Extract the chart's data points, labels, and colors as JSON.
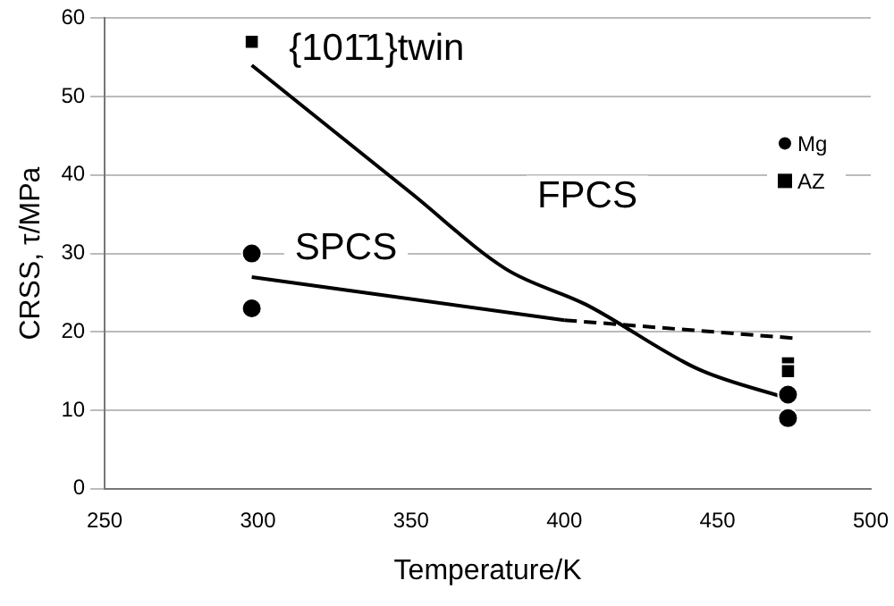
{
  "chart_data": {
    "type": "scatter",
    "xlabel": "Temperature/K",
    "ylabel": "CRSS, τ/MPa",
    "xlim": [
      250,
      500
    ],
    "xticks": [
      250,
      300,
      350,
      400,
      450,
      500
    ],
    "ylim": [
      0,
      60
    ],
    "yticks": [
      0,
      10,
      20,
      30,
      40,
      50,
      60
    ],
    "grid": "y",
    "legend": "right",
    "series": [
      {
        "name": "Mg",
        "marker": "circle",
        "color": "#000000",
        "x": [
          298,
          298,
          473,
          473
        ],
        "values": [
          30,
          23,
          12,
          9
        ]
      },
      {
        "name": "AZ",
        "marker": "square",
        "color": "#000000",
        "x": [
          298,
          473,
          473
        ],
        "values": [
          57,
          16,
          15
        ]
      },
      {
        "type": "line",
        "marker": "none",
        "line_style": "solid",
        "color": "#000000",
        "x": [
          298,
          400
        ],
        "values": [
          27,
          21.5
        ]
      },
      {
        "type": "line",
        "marker": "none",
        "line_style": "dashed",
        "color": "#000000",
        "x": [
          400,
          475
        ],
        "values": [
          21.5,
          19.2
        ]
      },
      {
        "type": "line",
        "marker": "none",
        "line_style": "solid",
        "color": "#000000",
        "x": [
          298,
          350,
          381,
          407,
          444,
          473
        ],
        "values": [
          54,
          37.7,
          28,
          23.5,
          15.2,
          11.5
        ]
      }
    ],
    "annotations": [
      "{101̄1}twin",
      "SPCS",
      "FPCS"
    ]
  }
}
